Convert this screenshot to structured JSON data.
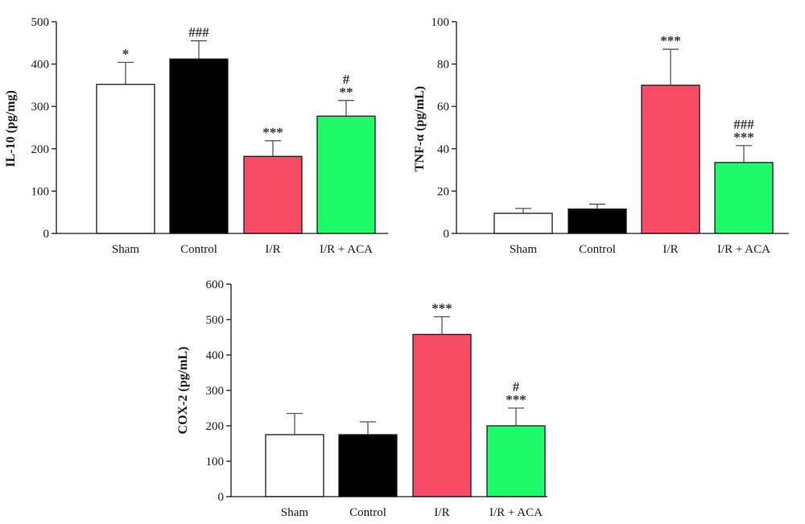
{
  "chart_data": [
    {
      "type": "bar",
      "ylabel": "IL-10 (pg/mg)",
      "ylim": [
        0,
        500
      ],
      "yticks": [
        0,
        100,
        200,
        300,
        400,
        500
      ],
      "categories": [
        "Sham",
        "Control",
        "I/R",
        "I/R + ACA"
      ],
      "values": [
        352,
        412,
        182,
        277
      ],
      "errors": [
        52,
        43,
        37,
        37
      ],
      "annotations": [
        [
          "*"
        ],
        [
          "###"
        ],
        [
          "***"
        ],
        [
          "**",
          "#"
        ]
      ],
      "colors": [
        "#ffffff",
        "#000000",
        "#f74a64",
        "#1dfb6a"
      ]
    },
    {
      "type": "bar",
      "ylabel": "TNF-α (pg/mL)",
      "ylim": [
        0,
        100
      ],
      "yticks": [
        0,
        20,
        40,
        60,
        80,
        100
      ],
      "categories": [
        "Sham",
        "Control",
        "I/R",
        "I/R + ACA"
      ],
      "values": [
        9.5,
        11.5,
        70,
        33.5
      ],
      "errors": [
        2.3,
        2.3,
        17,
        8
      ],
      "annotations": [
        [],
        [],
        [
          "***"
        ],
        [
          "***",
          "###"
        ]
      ],
      "colors": [
        "#ffffff",
        "#000000",
        "#f74a64",
        "#1dfb6a"
      ]
    },
    {
      "type": "bar",
      "ylabel": "COX-2 (pg/mL)",
      "ylim": [
        0,
        600
      ],
      "yticks": [
        0,
        100,
        200,
        300,
        400,
        500,
        600
      ],
      "categories": [
        "Sham",
        "Control",
        "I/R",
        "I/R + ACA"
      ],
      "values": [
        175,
        175,
        458,
        200
      ],
      "errors": [
        60,
        36,
        50,
        50
      ],
      "annotations": [
        [],
        [],
        [
          "***"
        ],
        [
          "***",
          "#"
        ]
      ],
      "colors": [
        "#ffffff",
        "#000000",
        "#f74a64",
        "#1dfb6a"
      ]
    }
  ]
}
